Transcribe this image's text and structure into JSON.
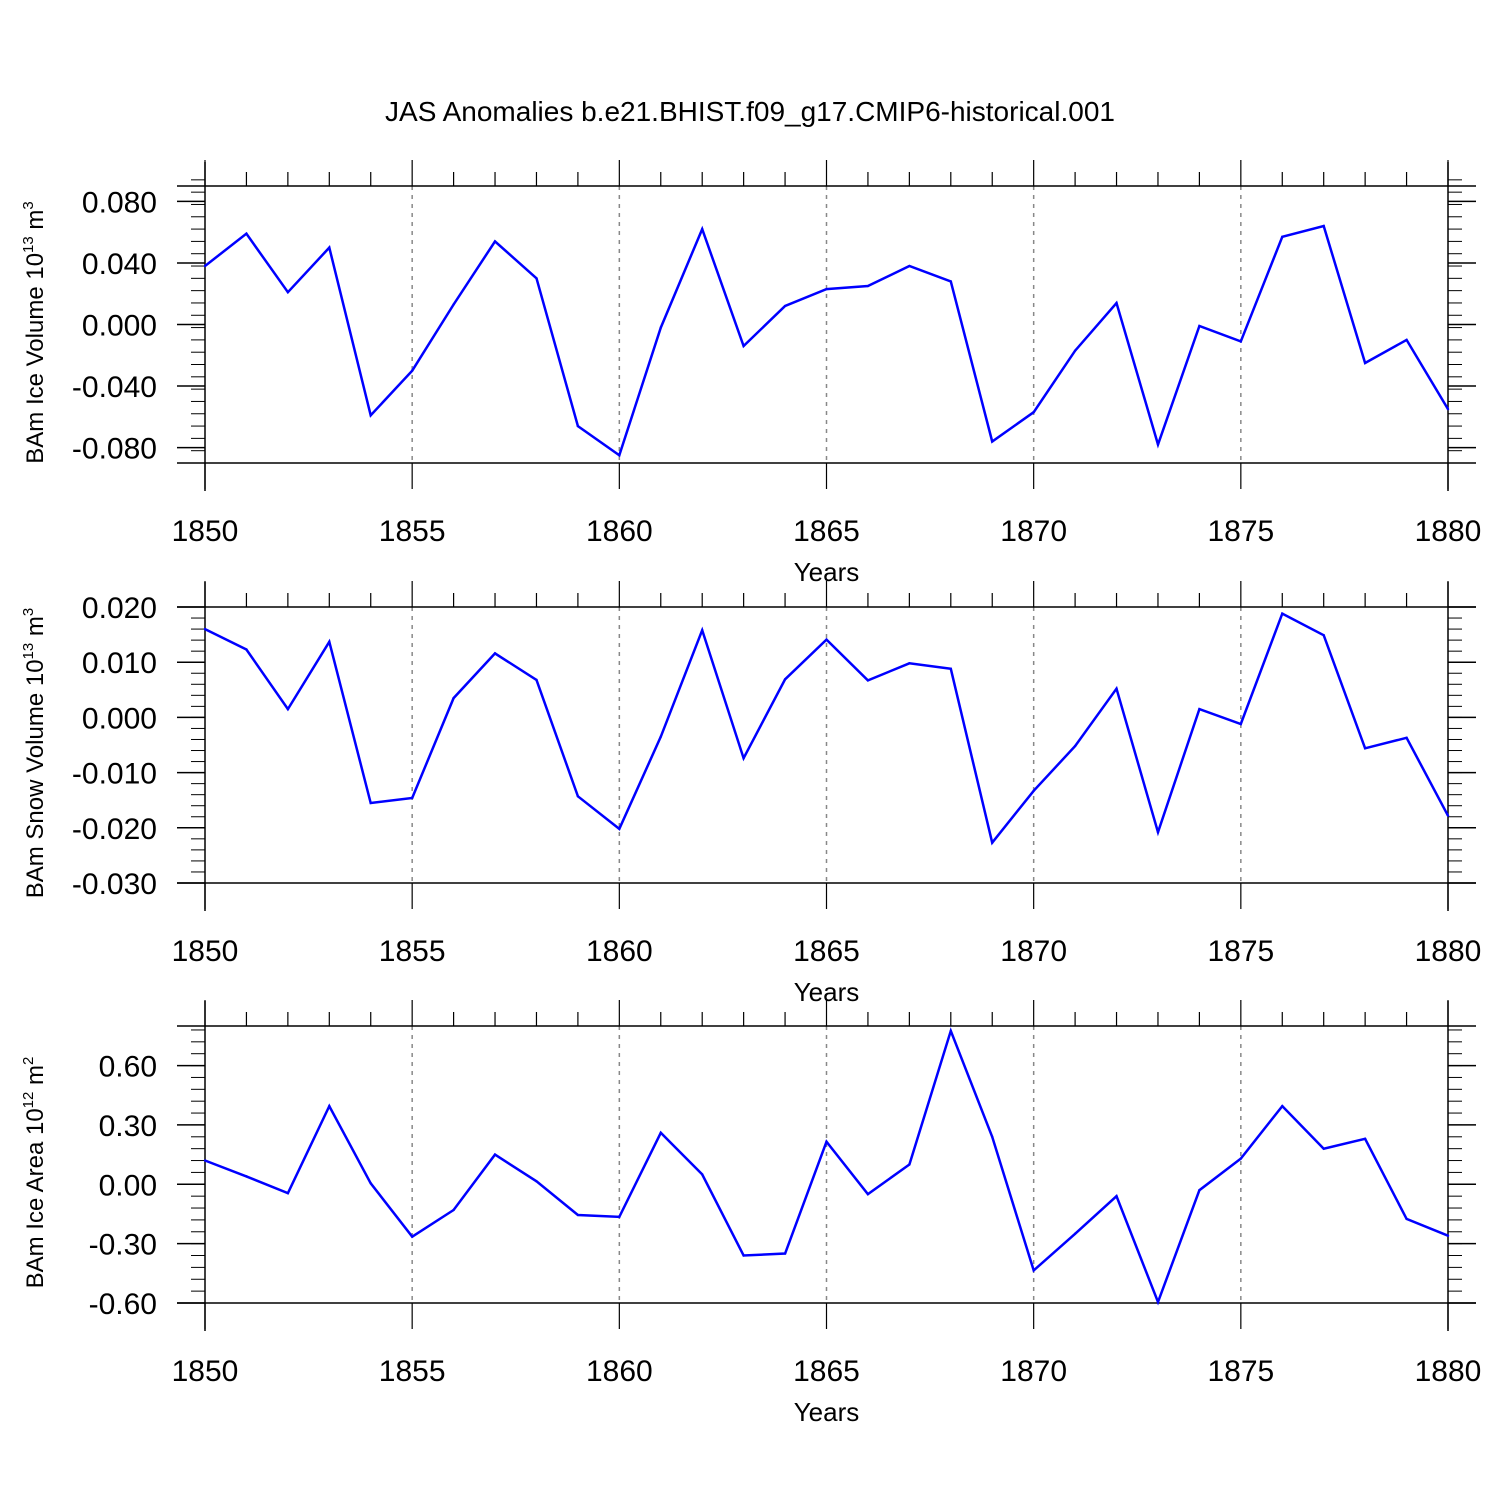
{
  "title": "JAS Anomalies b.e21.BHIST.f09_g17.CMIP6-historical.001",
  "chart_data": [
    {
      "type": "line",
      "ylabel_main": "BAm Ice Volume 10",
      "ylabel_exp": "13",
      "ylabel_unit": " m",
      "ylabel_unit_exp": "3",
      "xlabel": "Years",
      "line_color": "#0000ff",
      "xlim": [
        1850,
        1880
      ],
      "ylim": [
        -0.09,
        0.09
      ],
      "yticks": [
        -0.08,
        -0.04,
        0.0,
        0.04,
        0.08
      ],
      "ytick_labels": [
        "-0.080",
        "-0.040",
        "0.000",
        "0.040",
        "0.080"
      ],
      "yminor_step": 0.008,
      "xticks": [
        1850,
        1855,
        1860,
        1865,
        1870,
        1875,
        1880
      ],
      "xtick_labels": [
        "1850",
        "1855",
        "1860",
        "1865",
        "1870",
        "1875",
        "1880"
      ],
      "x": [
        1850,
        1851,
        1852,
        1853,
        1854,
        1855,
        1856,
        1857,
        1858,
        1859,
        1860,
        1861,
        1862,
        1863,
        1864,
        1865,
        1866,
        1867,
        1868,
        1869,
        1870,
        1871,
        1872,
        1873,
        1874,
        1875,
        1876,
        1877,
        1878,
        1879,
        1880
      ],
      "values": [
        0.038,
        0.059,
        0.021,
        0.05,
        -0.059,
        -0.03,
        0.013,
        0.054,
        0.03,
        -0.066,
        -0.085,
        -0.002,
        0.062,
        -0.014,
        0.012,
        0.023,
        0.025,
        0.038,
        0.028,
        -0.076,
        -0.057,
        -0.017,
        0.014,
        -0.078,
        -0.001,
        -0.011,
        0.057,
        0.064,
        -0.025,
        -0.01,
        -0.055
      ]
    },
    {
      "type": "line",
      "ylabel_main": "BAm Snow Volume 10",
      "ylabel_exp": "13",
      "ylabel_unit": " m",
      "ylabel_unit_exp": "3",
      "xlabel": "Years",
      "line_color": "#0000ff",
      "xlim": [
        1850,
        1880
      ],
      "ylim": [
        -0.03,
        0.02
      ],
      "yticks": [
        -0.03,
        -0.02,
        -0.01,
        0.0,
        0.01,
        0.02
      ],
      "ytick_labels": [
        "-0.030",
        "-0.020",
        "-0.010",
        "0.000",
        "0.010",
        "0.020"
      ],
      "yminor_step": 0.002,
      "xticks": [
        1850,
        1855,
        1860,
        1865,
        1870,
        1875,
        1880
      ],
      "xtick_labels": [
        "1850",
        "1855",
        "1860",
        "1865",
        "1870",
        "1875",
        "1880"
      ],
      "x": [
        1850,
        1851,
        1852,
        1853,
        1854,
        1855,
        1856,
        1857,
        1858,
        1859,
        1860,
        1861,
        1862,
        1863,
        1864,
        1865,
        1866,
        1867,
        1868,
        1869,
        1870,
        1871,
        1872,
        1873,
        1874,
        1875,
        1876,
        1877,
        1878,
        1879,
        1880
      ],
      "values": [
        0.016,
        0.0123,
        0.0015,
        0.0137,
        -0.0155,
        -0.0146,
        0.0035,
        0.0116,
        0.0068,
        -0.0143,
        -0.0202,
        -0.0035,
        0.0158,
        -0.0074,
        0.0069,
        0.0141,
        0.0067,
        0.0098,
        0.0088,
        -0.0227,
        -0.0133,
        -0.0052,
        0.0052,
        -0.0208,
        0.0015,
        -0.0012,
        0.0188,
        0.0149,
        -0.0056,
        -0.0037,
        -0.0178
      ]
    },
    {
      "type": "line",
      "ylabel_main": "BAm Ice Area 10",
      "ylabel_exp": "12",
      "ylabel_unit": " m",
      "ylabel_unit_exp": "2",
      "xlabel": "Years",
      "line_color": "#0000ff",
      "xlim": [
        1850,
        1880
      ],
      "ylim": [
        -0.6,
        0.8
      ],
      "yticks": [
        -0.6,
        -0.3,
        0.0,
        0.3,
        0.6
      ],
      "ytick_labels": [
        "-0.60",
        "-0.30",
        "0.00",
        "0.30",
        "0.60"
      ],
      "yminor_step": 0.06,
      "xticks": [
        1850,
        1855,
        1860,
        1865,
        1870,
        1875,
        1880
      ],
      "xtick_labels": [
        "1850",
        "1855",
        "1860",
        "1865",
        "1870",
        "1875",
        "1880"
      ],
      "x": [
        1850,
        1851,
        1852,
        1853,
        1854,
        1855,
        1856,
        1857,
        1858,
        1859,
        1860,
        1861,
        1862,
        1863,
        1864,
        1865,
        1866,
        1867,
        1868,
        1869,
        1870,
        1871,
        1872,
        1873,
        1874,
        1875,
        1876,
        1877,
        1878,
        1879,
        1880
      ],
      "values": [
        0.12,
        0.04,
        -0.045,
        0.395,
        0.005,
        -0.265,
        -0.13,
        0.15,
        0.015,
        -0.155,
        -0.165,
        0.26,
        0.05,
        -0.36,
        -0.35,
        0.215,
        -0.05,
        0.1,
        0.775,
        0.24,
        -0.435,
        -0.25,
        -0.06,
        -0.595,
        -0.03,
        0.13,
        0.395,
        0.18,
        0.23,
        -0.175,
        -0.26
      ]
    }
  ]
}
